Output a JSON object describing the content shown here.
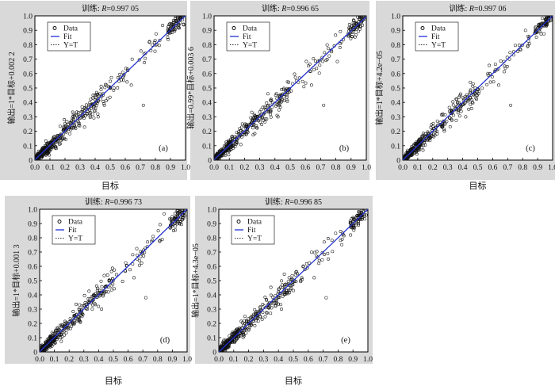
{
  "chart_data": [
    {
      "type": "scatter",
      "panel_label": "(a)",
      "title_prefix": "训练: ",
      "title_var": "R",
      "title_value": "=0.997 05",
      "ylabel": "输出=1*目标+0.002 2",
      "xlabel": "目标",
      "xlim": [
        0,
        1
      ],
      "ylim": [
        0,
        1
      ],
      "xticks": [
        "0.0",
        "0.1",
        "0.2",
        "0.3",
        "0.4",
        "0.5",
        "0.6",
        "0.7",
        "0.8",
        "0.9",
        "1.0"
      ],
      "yticks": [
        "0",
        "0.1",
        "0.2",
        "0.3",
        "0.4",
        "0.5",
        "0.6",
        "0.7",
        "0.8",
        "0.9",
        "1.0"
      ],
      "legend": [
        "Data",
        "Fit",
        "Y=T"
      ],
      "legend_position": "top-left",
      "series": [
        {
          "name": "Data",
          "kind": "scatter"
        },
        {
          "name": "Fit",
          "kind": "line",
          "slope": 1,
          "intercept": 0.0022
        },
        {
          "name": "Y=T",
          "kind": "line",
          "slope": 1,
          "intercept": 0
        }
      ]
    },
    {
      "type": "scatter",
      "panel_label": "(b)",
      "title_prefix": "训练: ",
      "title_var": "R",
      "title_value": "=0.996 65",
      "ylabel": "输出=0.99*目标+0.003 6",
      "xlabel": "",
      "xlim": [
        0,
        1
      ],
      "ylim": [
        0,
        1
      ],
      "xticks": [
        "0.0",
        "0.1",
        "0.2",
        "0.3",
        "0.4",
        "0.5",
        "0.6",
        "0.7",
        "0.8",
        "0.9",
        "1.0"
      ],
      "yticks": [
        "0",
        "0.1",
        "0.2",
        "0.3",
        "0.4",
        "0.5",
        "0.6",
        "0.7",
        "0.8",
        "0.9",
        "1.0"
      ],
      "legend": [
        "Data",
        "Fit",
        "Y=T"
      ],
      "legend_position": "top-left",
      "series": [
        {
          "name": "Data",
          "kind": "scatter"
        },
        {
          "name": "Fit",
          "kind": "line",
          "slope": 0.99,
          "intercept": 0.0036
        },
        {
          "name": "Y=T",
          "kind": "line",
          "slope": 1,
          "intercept": 0
        }
      ]
    },
    {
      "type": "scatter",
      "panel_label": "(c)",
      "title_prefix": "训练: ",
      "title_var": "R",
      "title_value": "=0.997 06",
      "ylabel": "输出=1*目标+4.2e−05",
      "xlabel": "目标",
      "xlim": [
        0,
        1
      ],
      "ylim": [
        0,
        1
      ],
      "xticks": [
        "0.0",
        "0.1",
        "0.2",
        "0.3",
        "0.4",
        "0.5",
        "0.6",
        "0.7",
        "0.8",
        "0.9",
        "1.0"
      ],
      "yticks": [
        "0",
        "0.1",
        "0.2",
        "0.3",
        "0.4",
        "0.5",
        "0.6",
        "0.7",
        "0.8",
        "0.9",
        "1.0"
      ],
      "legend": [
        "Data",
        "Fit",
        "Y=T"
      ],
      "legend_position": "top-left",
      "series": [
        {
          "name": "Data",
          "kind": "scatter"
        },
        {
          "name": "Fit",
          "kind": "line",
          "slope": 1,
          "intercept": 4.2e-05
        },
        {
          "name": "Y=T",
          "kind": "line",
          "slope": 1,
          "intercept": 0
        }
      ]
    },
    {
      "type": "scatter",
      "panel_label": "(d)",
      "title_prefix": "训练: ",
      "title_var": "R",
      "title_value": "=0.996 73",
      "ylabel": "输出=1*目标+0.001 3",
      "xlabel": "目标",
      "xlim": [
        0,
        1
      ],
      "ylim": [
        0,
        1
      ],
      "xticks": [
        "0.0",
        "0.1",
        "0.2",
        "0.3",
        "0.4",
        "0.5",
        "0.6",
        "0.7",
        "0.8",
        "0.9",
        "1.0"
      ],
      "yticks": [
        "0",
        "0.1",
        "0.2",
        "0.3",
        "0.4",
        "0.5",
        "0.6",
        "0.7",
        "0.8",
        "0.9",
        "1.0"
      ],
      "legend": [
        "Data",
        "Fit",
        "Y=T"
      ],
      "legend_position": "top-left",
      "series": [
        {
          "name": "Data",
          "kind": "scatter"
        },
        {
          "name": "Fit",
          "kind": "line",
          "slope": 1,
          "intercept": 0.0013
        },
        {
          "name": "Y=T",
          "kind": "line",
          "slope": 1,
          "intercept": 0
        }
      ]
    },
    {
      "type": "scatter",
      "panel_label": "(e)",
      "title_prefix": "训练: ",
      "title_var": "R",
      "title_value": "=0.996 85",
      "ylabel": "输出=1*目标+4.3e−05",
      "xlabel": "目标",
      "xlim": [
        0,
        1
      ],
      "ylim": [
        0,
        1
      ],
      "xticks": [
        "0.0",
        "0.1",
        "0.2",
        "0.3",
        "0.4",
        "0.5",
        "0.6",
        "0.7",
        "0.8",
        "0.9",
        "1.0"
      ],
      "yticks": [
        "0",
        "0.1",
        "0.2",
        "0.3",
        "0.4",
        "0.5",
        "0.6",
        "0.7",
        "0.8",
        "0.9",
        "1.0"
      ],
      "legend": [
        "Data",
        "Fit",
        "Y=T"
      ],
      "legend_position": "top-left",
      "series": [
        {
          "name": "Data",
          "kind": "scatter"
        },
        {
          "name": "Fit",
          "kind": "line",
          "slope": 1,
          "intercept": 4.3e-05
        },
        {
          "name": "Y=T",
          "kind": "line",
          "slope": 1,
          "intercept": 0
        }
      ]
    }
  ],
  "colors": {
    "figure_bg": "#d9d9d9",
    "plot_bg": "#ffffff",
    "fit_line": "#1f2fd6",
    "yt_line": "#555555",
    "marker": "#111111"
  }
}
